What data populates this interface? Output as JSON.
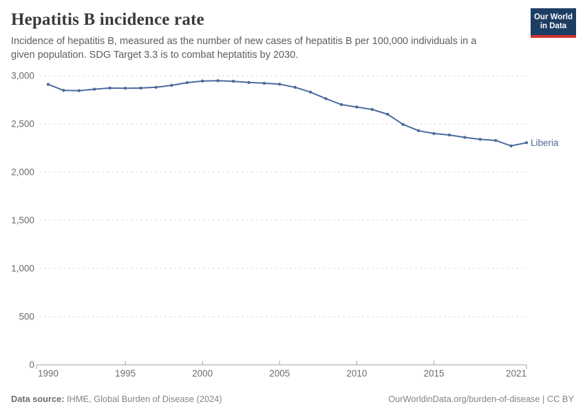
{
  "header": {
    "title": "Hepatitis B incidence rate",
    "subtitle": "Incidence of hepatitis B, measured as the number of new cases of hepatitis B per 100,000 individuals in a given population. SDG Target 3.3 is to combat heptatitis by 2030.",
    "logo": {
      "line1": "Our World",
      "line2": "in Data",
      "bg_color": "#1d3d63",
      "bar_color": "#cf352e"
    }
  },
  "chart_data": {
    "type": "line",
    "title": "Hepatitis B incidence rate",
    "entity_label": "Liberia",
    "line_color": "#4C6A9C",
    "x": [
      1990,
      1991,
      1992,
      1993,
      1994,
      1995,
      1996,
      1997,
      1998,
      1999,
      2000,
      2001,
      2002,
      2003,
      2004,
      2005,
      2006,
      2007,
      2008,
      2009,
      2010,
      2011,
      2012,
      2013,
      2014,
      2015,
      2016,
      2017,
      2018,
      2019,
      2020,
      2021
    ],
    "values": [
      2910,
      2848,
      2845,
      2860,
      2872,
      2870,
      2872,
      2880,
      2900,
      2928,
      2945,
      2948,
      2942,
      2930,
      2922,
      2912,
      2880,
      2830,
      2762,
      2700,
      2675,
      2650,
      2600,
      2495,
      2430,
      2400,
      2385,
      2360,
      2340,
      2328,
      2272,
      2305
    ],
    "ylim": [
      0,
      3000
    ],
    "yticks": [
      0,
      500,
      1000,
      1500,
      2000,
      2500,
      3000
    ],
    "xticks": [
      1990,
      1995,
      2000,
      2005,
      2010,
      2015,
      2021
    ],
    "grid": "horizontal-dashed",
    "legend_position": "end-of-line",
    "axis_color": "#a1a1a1",
    "grid_color": "#dadada",
    "tick_label_color": "#6b6b6b"
  },
  "footer": {
    "source_label": "Data source:",
    "source_text": " IHME, Global Burden of Disease (2024)",
    "right_link": "OurWorldinData.org/burden-of-disease",
    "right_license": " | CC BY"
  }
}
